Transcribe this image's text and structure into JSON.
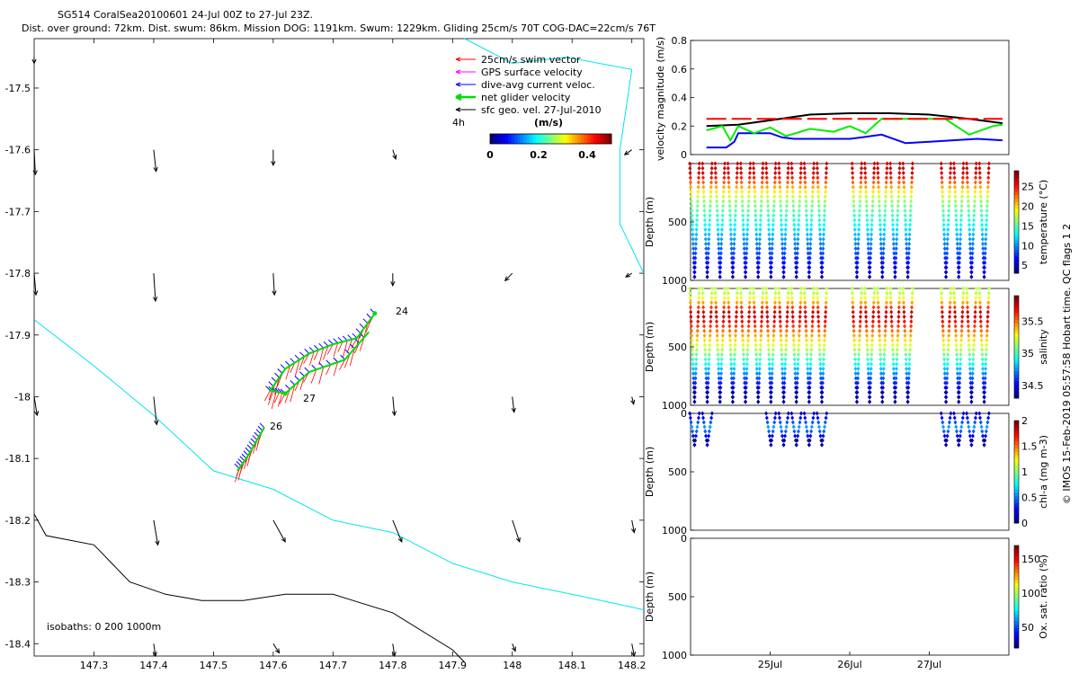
{
  "header": {
    "title_line1": "SG514 CoralSea20100601 24-Jul 00Z to 27-Jul 23Z.",
    "title_line2": "Dist. over ground: 72km. Dist. swum: 86km. Mission DOG: 1191km. Swum: 1229km. Gliding 25cm/s 70T COG-DAC=22cm/s 76T"
  },
  "colors": {
    "swim": "#ff0000",
    "gps": "#ff00ff",
    "dac": "#0000ff",
    "net": "#00dd00",
    "geo": "#000000",
    "coast": "#00e5ee",
    "isobath": "#000000"
  },
  "chart_data": [
    {
      "id": "map",
      "type": "scatter",
      "title": "",
      "xlim": [
        147.2,
        148.22
      ],
      "ylim": [
        -18.42,
        -17.42
      ],
      "xticks": [
        147.3,
        147.4,
        147.5,
        147.6,
        147.7,
        147.8,
        147.9,
        148,
        148.1,
        148.2
      ],
      "xticklabels": [
        "147.3",
        "147.4",
        "147.5",
        "147.6",
        "147.7",
        "147.8",
        "147.9",
        "148",
        "148.1",
        "148.2"
      ],
      "yticks": [
        -17.5,
        -17.6,
        -17.7,
        -17.8,
        -17.9,
        -18,
        -18.1,
        -18.2,
        -18.3,
        -18.4
      ],
      "yticklabels": [
        "-17.5",
        "-17.6",
        "-17.7",
        "-17.8",
        "-17.9",
        "-18",
        "-18.1",
        "-18.2",
        "-18.3",
        "-18.4"
      ],
      "legend": {
        "placement": "top-right",
        "entries": [
          {
            "label": "25cm/s swim vector",
            "color": "#ff0000"
          },
          {
            "label": "GPS surface velocity",
            "color": "#ff00ff"
          },
          {
            "label": "dive-avg current veloc.",
            "color": "#0000ff"
          },
          {
            "label": "net glider velocity",
            "color": "#00dd00"
          },
          {
            "label": "sfc geo. vel. 27-Jul-2010",
            "color": "#000000"
          }
        ],
        "time_scale": "4h",
        "speed_unit": "(m/s)",
        "colorbar_ticks": [
          "0",
          "0.2",
          "0.4"
        ],
        "colorbar_range": [
          0,
          0.5
        ]
      },
      "isobath_label": "isobaths: 0   200  1000m",
      "day_labels": [
        {
          "text": "24",
          "lon": 147.785,
          "lat": -17.865
        },
        {
          "text": "27",
          "lon": 147.64,
          "lat": -18.005
        },
        {
          "text": "26",
          "lon": 147.585,
          "lat": -18.06
        }
      ],
      "track": [
        {
          "lon": 147.77,
          "lat": -17.865
        },
        {
          "lon": 147.74,
          "lat": -17.905
        },
        {
          "lon": 147.7,
          "lat": -17.915
        },
        {
          "lon": 147.66,
          "lat": -17.93
        },
        {
          "lon": 147.62,
          "lat": -17.955
        },
        {
          "lon": 147.595,
          "lat": -17.99
        },
        {
          "lon": 147.62,
          "lat": -17.995
        },
        {
          "lon": 147.66,
          "lat": -17.96
        },
        {
          "lon": 147.72,
          "lat": -17.94
        },
        {
          "lon": 147.76,
          "lat": -17.895
        }
      ],
      "track2": [
        {
          "lon": 147.585,
          "lat": -18.05
        },
        {
          "lon": 147.57,
          "lat": -18.075
        },
        {
          "lon": 147.555,
          "lat": -18.1
        },
        {
          "lon": 147.54,
          "lat": -18.12
        }
      ],
      "coastline": [
        {
          "lon": 147.2,
          "lat": -17.875
        },
        {
          "lon": 147.3,
          "lat": -17.95
        },
        {
          "lon": 147.4,
          "lat": -18.03
        },
        {
          "lon": 147.5,
          "lat": -18.12
        },
        {
          "lon": 147.6,
          "lat": -18.15
        },
        {
          "lon": 147.7,
          "lat": -18.2
        },
        {
          "lon": 147.8,
          "lat": -18.22
        },
        {
          "lon": 147.9,
          "lat": -18.27
        },
        {
          "lon": 148.0,
          "lat": -18.3
        },
        {
          "lon": 148.1,
          "lat": -18.32
        },
        {
          "lon": 148.22,
          "lat": -18.345
        }
      ],
      "coastline_ne": [
        {
          "lon": 147.92,
          "lat": -17.42
        },
        {
          "lon": 148.0,
          "lat": -17.46
        },
        {
          "lon": 148.09,
          "lat": -17.45
        },
        {
          "lon": 148.2,
          "lat": -17.47
        },
        {
          "lon": 148.18,
          "lat": -17.6
        },
        {
          "lon": 148.18,
          "lat": -17.72
        },
        {
          "lon": 148.22,
          "lat": -17.8
        }
      ],
      "isobath_1000": [
        {
          "lon": 147.2,
          "lat": -18.19
        },
        {
          "lon": 147.22,
          "lat": -18.225
        },
        {
          "lon": 147.3,
          "lat": -18.24
        },
        {
          "lon": 147.36,
          "lat": -18.3
        },
        {
          "lon": 147.42,
          "lat": -18.32
        },
        {
          "lon": 147.48,
          "lat": -18.33
        },
        {
          "lon": 147.55,
          "lat": -18.33
        },
        {
          "lon": 147.62,
          "lat": -18.32
        },
        {
          "lon": 147.7,
          "lat": -18.32
        },
        {
          "lon": 147.8,
          "lat": -18.35
        },
        {
          "lon": 147.9,
          "lat": -18.41
        },
        {
          "lon": 147.92,
          "lat": -18.43
        }
      ],
      "geo_arrows": [
        {
          "lon": 147.2,
          "lat": -17.45,
          "u": 0.0,
          "v": -0.01
        },
        {
          "lon": 147.2,
          "lat": -17.6,
          "u": 0.002,
          "v": -0.04
        },
        {
          "lon": 147.4,
          "lat": -17.6,
          "u": 0.004,
          "v": -0.035
        },
        {
          "lon": 147.6,
          "lat": -17.6,
          "u": 0.0,
          "v": -0.025
        },
        {
          "lon": 147.8,
          "lat": -17.6,
          "u": 0.005,
          "v": -0.015
        },
        {
          "lon": 148.2,
          "lat": -17.6,
          "u": -0.012,
          "v": -0.008
        },
        {
          "lon": 147.2,
          "lat": -17.8,
          "u": 0.003,
          "v": -0.035
        },
        {
          "lon": 147.4,
          "lat": -17.8,
          "u": 0.003,
          "v": -0.045
        },
        {
          "lon": 147.6,
          "lat": -17.8,
          "u": 0.002,
          "v": -0.035
        },
        {
          "lon": 147.8,
          "lat": -17.8,
          "u": 0.0,
          "v": -0.02
        },
        {
          "lon": 148.0,
          "lat": -17.8,
          "u": -0.012,
          "v": -0.012
        },
        {
          "lon": 148.2,
          "lat": -17.8,
          "u": -0.01,
          "v": -0.006
        },
        {
          "lon": 147.2,
          "lat": -18.0,
          "u": 0.005,
          "v": -0.03
        },
        {
          "lon": 147.4,
          "lat": -18.0,
          "u": 0.005,
          "v": -0.045
        },
        {
          "lon": 147.8,
          "lat": -18.0,
          "u": 0.003,
          "v": -0.03
        },
        {
          "lon": 148.0,
          "lat": -18.0,
          "u": 0.003,
          "v": -0.025
        },
        {
          "lon": 148.2,
          "lat": -18.0,
          "u": 0.003,
          "v": -0.012
        },
        {
          "lon": 147.4,
          "lat": -18.2,
          "u": 0.007,
          "v": -0.04
        },
        {
          "lon": 147.6,
          "lat": -18.2,
          "u": 0.02,
          "v": -0.035
        },
        {
          "lon": 147.8,
          "lat": -18.2,
          "u": 0.015,
          "v": -0.035
        },
        {
          "lon": 148.0,
          "lat": -18.2,
          "u": 0.012,
          "v": -0.035
        },
        {
          "lon": 148.2,
          "lat": -18.2,
          "u": 0.004,
          "v": -0.02
        },
        {
          "lon": 147.4,
          "lat": -18.4,
          "u": 0.003,
          "v": -0.02
        },
        {
          "lon": 147.6,
          "lat": -18.4,
          "u": 0.01,
          "v": -0.015
        },
        {
          "lon": 147.8,
          "lat": -18.4,
          "u": 0.003,
          "v": -0.02
        },
        {
          "lon": 148.0,
          "lat": -18.4,
          "u": 0.005,
          "v": -0.012
        },
        {
          "lon": 148.2,
          "lat": -18.4,
          "u": 0.004,
          "v": -0.02
        }
      ]
    },
    {
      "id": "velocity",
      "type": "line",
      "ylabel": "velocity magnitude (m/s)",
      "xlim": [
        0,
        4
      ],
      "ylim": [
        0,
        0.8
      ],
      "yticks": [
        0,
        0.2,
        0.4,
        0.6,
        0.8
      ],
      "yticklabels": [
        "0",
        "0.2",
        "0.4",
        "0.6",
        "0.8"
      ],
      "series": [
        {
          "color": "#000000",
          "x": [
            0.2,
            0.6,
            1.0,
            1.5,
            2.0,
            2.5,
            3.0,
            3.5,
            3.92
          ],
          "values": [
            0.2,
            0.21,
            0.24,
            0.28,
            0.29,
            0.29,
            0.28,
            0.25,
            0.22
          ]
        },
        {
          "color": "#0000ff",
          "x": [
            0.2,
            0.45,
            0.55,
            0.6,
            1.0,
            1.15,
            1.3,
            1.6,
            2.0,
            2.15,
            2.4,
            2.7,
            3.0,
            3.3,
            3.6,
            3.92
          ],
          "values": [
            0.05,
            0.05,
            0.09,
            0.15,
            0.15,
            0.12,
            0.11,
            0.11,
            0.11,
            0.12,
            0.14,
            0.08,
            0.09,
            0.1,
            0.11,
            0.1
          ]
        },
        {
          "color": "#00ee00",
          "x": [
            0.2,
            0.4,
            0.5,
            0.6,
            0.8,
            1.0,
            1.2,
            1.5,
            1.8,
            2.0,
            2.2,
            2.4,
            2.8,
            3.2,
            3.5,
            3.8,
            3.92
          ],
          "values": [
            0.17,
            0.2,
            0.1,
            0.2,
            0.15,
            0.19,
            0.13,
            0.18,
            0.16,
            0.2,
            0.15,
            0.25,
            0.25,
            0.25,
            0.14,
            0.2,
            0.21
          ]
        },
        {
          "color": "#ff0000",
          "x": [
            0.2,
            1.9,
            2.05,
            3.92
          ],
          "values": [
            0.25,
            0.25,
            0.25,
            0.25
          ],
          "dashed": true
        }
      ]
    },
    {
      "id": "temperature",
      "type": "scatter",
      "ylabel": "Depth (m)",
      "clabel": "temperature (°C)",
      "ylim": [
        1000,
        0
      ],
      "yticks": [
        0,
        500,
        1000
      ],
      "yticklabels": [
        "",
        "500",
        "1000"
      ],
      "clim": [
        3,
        29
      ],
      "cticks": [
        "5",
        "10",
        "15",
        "20",
        "25"
      ],
      "cvalues": [
        5,
        10,
        15,
        20,
        25
      ],
      "profile": "temperature",
      "dives": [
        0.05,
        0.21,
        0.37,
        0.53,
        0.69,
        0.85,
        1.01,
        1.17,
        1.33,
        1.49,
        1.65,
        2.09,
        2.25,
        2.41,
        2.57,
        2.73,
        3.21,
        3.37,
        3.53,
        3.69
      ],
      "dive_depth": 970
    },
    {
      "id": "salinity",
      "type": "scatter",
      "ylabel": "Depth (m)",
      "clabel": "salinity",
      "ylim": [
        1000,
        0
      ],
      "yticks": [
        0,
        500,
        1000
      ],
      "yticklabels": [
        "0",
        "500",
        "1000"
      ],
      "clim": [
        34.3,
        35.9
      ],
      "cticks": [
        "34.5",
        "35",
        "35.5"
      ],
      "cvalues": [
        34.5,
        35,
        35.5
      ],
      "profile": "salinity",
      "dives": [
        0.05,
        0.21,
        0.37,
        0.53,
        0.69,
        0.85,
        1.01,
        1.17,
        1.33,
        1.49,
        1.65,
        2.09,
        2.25,
        2.41,
        2.57,
        2.73,
        3.21,
        3.37,
        3.53,
        3.69
      ],
      "dive_depth": 970
    },
    {
      "id": "chlorophyll",
      "type": "scatter",
      "ylabel": "Depth (m)",
      "clabel": "chl-a (mg m-3)",
      "ylim": [
        1000,
        0
      ],
      "yticks": [
        0,
        500,
        1000
      ],
      "yticklabels": [
        "0",
        "500",
        "1000"
      ],
      "clim": [
        0,
        2
      ],
      "cticks": [
        "0",
        "0.5",
        "1",
        "1.5",
        "2"
      ],
      "cvalues": [
        0,
        0.5,
        1,
        1.5,
        2
      ],
      "profile": "chl",
      "dives": [
        0.05,
        0.21,
        1.01,
        1.17,
        1.33,
        1.49,
        1.65,
        3.21,
        3.37,
        3.53,
        3.69
      ],
      "dive_depth": 270
    },
    {
      "id": "oxygen",
      "type": "scatter",
      "ylabel": "Depth (m)",
      "clabel": "Ox. sat. ratio (%)",
      "ylim": [
        1000,
        0
      ],
      "yticks": [
        0,
        500,
        1000
      ],
      "yticklabels": [
        "0",
        "500",
        "1000"
      ],
      "clim": [
        20,
        170
      ],
      "cticks": [
        "50",
        "100",
        "150"
      ],
      "cvalues": [
        50,
        100,
        150
      ],
      "profile": "none",
      "dives": [],
      "dive_depth": 0,
      "xticks": [
        1,
        2,
        3
      ],
      "xticklabels": [
        "25Jul",
        "26Jul",
        "27Jul"
      ]
    }
  ],
  "footer": {
    "side_note": "© IMOS 15-Feb-2019 05:57:58 Hobart time. QC flags 1  2"
  }
}
